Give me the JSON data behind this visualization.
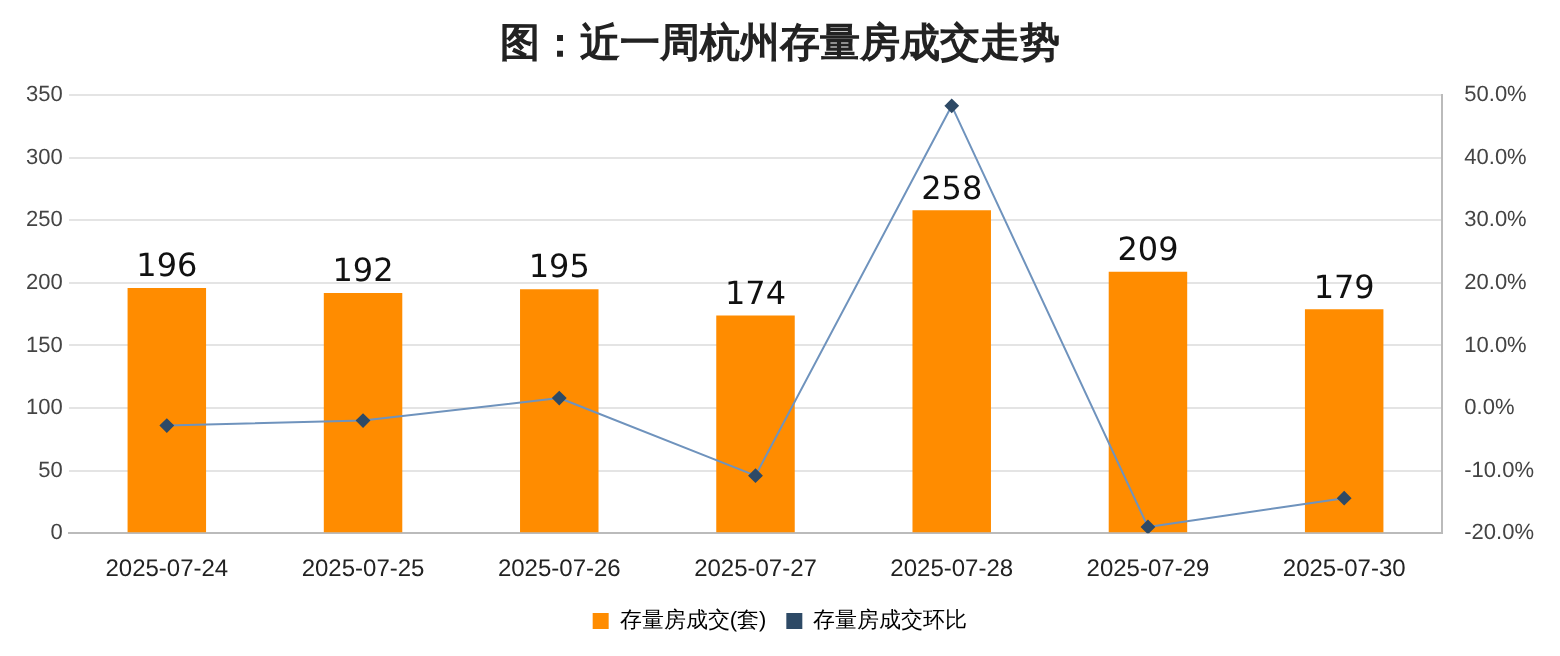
{
  "chart_data": {
    "type": "bar",
    "title": "图：近一周杭州存量房成交走势",
    "categories": [
      "2025-07-24",
      "2025-07-25",
      "2025-07-26",
      "2025-07-27",
      "2025-07-28",
      "2025-07-29",
      "2025-07-30"
    ],
    "series": [
      {
        "name": "存量房成交(套)",
        "color": "#ff8c00",
        "values": [
          196,
          192,
          195,
          174,
          258,
          209,
          179
        ]
      },
      {
        "name": "存量房成交环比",
        "type": "line",
        "axis": "y2",
        "color": "#6f93bd",
        "values": [
          -2.8,
          -2.0,
          1.6,
          -10.8,
          48.3,
          -19.0,
          -14.4
        ]
      }
    ],
    "ylim": [
      0,
      350
    ],
    "yticks": [
      0,
      50,
      100,
      150,
      200,
      250,
      300,
      350
    ],
    "y2lim": [
      -20,
      50
    ],
    "y2ticks": [
      {
        "value": -20,
        "label": "-20.0%"
      },
      {
        "value": -10,
        "label": "-10.0%"
      },
      {
        "value": 0,
        "label": "0.0%"
      },
      {
        "value": 10,
        "label": "10.0%"
      },
      {
        "value": 20,
        "label": "20.0%"
      },
      {
        "value": 30,
        "label": "30.0%"
      },
      {
        "value": 40,
        "label": "40.0%"
      },
      {
        "value": 50,
        "label": "50.0%"
      }
    ],
    "value_labels": [
      "196",
      "192",
      "195",
      "174",
      "258",
      "209",
      "179"
    ],
    "grid": "y",
    "legend": "bottom",
    "marker": "diamond",
    "line_style": "solid"
  }
}
